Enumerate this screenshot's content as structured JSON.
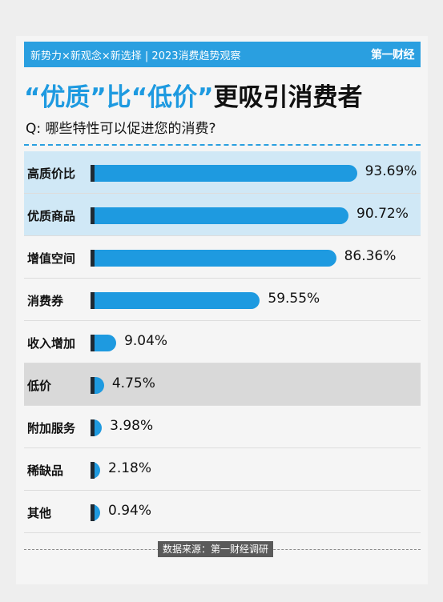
{
  "banner": {
    "text": "新势力×新观念×新选择 | 2023消费趋势观察",
    "brand": "第一财经"
  },
  "headline": {
    "part1": "“优质”比“低价”",
    "part2": "更吸引消费者"
  },
  "question": "Q: 哪些特性可以促进您的消费?",
  "source": "数据来源：第一财经调研",
  "colors": {
    "bar": "#1e9ae0",
    "banner": "#2a9fe0",
    "highlight_blue": "#d0e8f6",
    "highlight_gray": "#d9d9d9"
  },
  "chart_data": {
    "type": "bar",
    "orientation": "horizontal",
    "title": "“优质”比“低价”更吸引消费者",
    "subtitle": "Q: 哪些特性可以促进您的消费?",
    "categories": [
      "高质价比",
      "优质商品",
      "增值空间",
      "消费券",
      "收入增加",
      "低价",
      "附加服务",
      "稀缺品",
      "其他"
    ],
    "values": [
      93.69,
      90.72,
      86.36,
      59.55,
      9.04,
      4.75,
      3.98,
      2.18,
      0.94
    ],
    "value_labels": [
      "93.69%",
      "90.72%",
      "86.36%",
      "59.55%",
      "9.04%",
      "4.75%",
      "3.98%",
      "2.18%",
      "0.94%"
    ],
    "highlighted": [
      "blue",
      "blue",
      "none",
      "none",
      "none",
      "gray",
      "none",
      "none",
      "none"
    ],
    "unit": "%",
    "xlim": [
      0,
      100
    ],
    "grid": false,
    "source": "数据来源：第一财经调研"
  }
}
